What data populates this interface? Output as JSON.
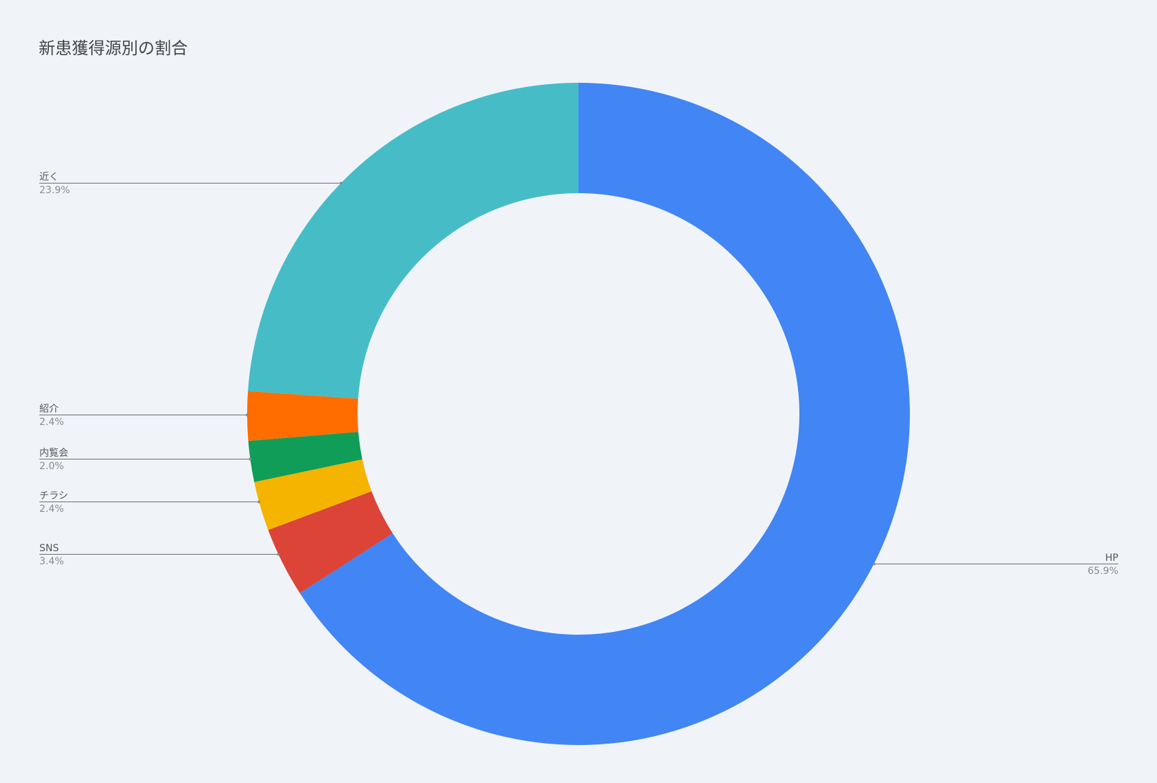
{
  "chart_data": {
    "type": "pie",
    "title": "新患獲得源別の割合",
    "donut": true,
    "legend": "labels-with-leader-lines",
    "slices": [
      {
        "label": "HP",
        "value": 65.9,
        "value_label": "65.9%",
        "color": "#4285f4"
      },
      {
        "label": "SNS",
        "value": 3.4,
        "value_label": "3.4%",
        "color": "#db4437"
      },
      {
        "label": "チラシ",
        "value": 2.4,
        "value_label": "2.4%",
        "color": "#f4b400"
      },
      {
        "label": "内覧会",
        "value": 2.0,
        "value_label": "2.0%",
        "color": "#0f9d58"
      },
      {
        "label": "紹介",
        "value": 2.4,
        "value_label": "2.4%",
        "color": "#ff6d01"
      },
      {
        "label": "近く",
        "value": 23.9,
        "value_label": "23.9%",
        "color": "#46bdc6"
      }
    ]
  }
}
